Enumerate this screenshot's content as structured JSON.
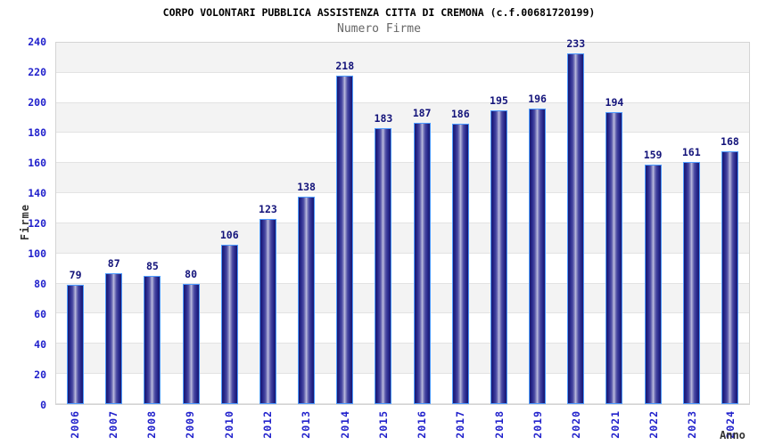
{
  "chart_data": {
    "type": "bar",
    "title": "CORPO VOLONTARI PUBBLICA ASSISTENZA CITTA DI CREMONA (c.f.00681720199)",
    "subtitle": "Numero Firme",
    "xlabel": "Anno",
    "ylabel": "Firme",
    "ylim": [
      0,
      240
    ],
    "ytick_step": 20,
    "grid": "horizontal-bands-alternating",
    "legend": "none",
    "categories": [
      "2006",
      "2007",
      "2008",
      "2009",
      "2010",
      "2012",
      "2013",
      "2014",
      "2015",
      "2016",
      "2017",
      "2018",
      "2019",
      "2020",
      "2021",
      "2022",
      "2023",
      "2024"
    ],
    "values": [
      79,
      87,
      85,
      80,
      106,
      123,
      138,
      218,
      183,
      187,
      186,
      195,
      196,
      233,
      194,
      159,
      161,
      168
    ],
    "colors": {
      "bar_dark": "#18186e",
      "bar_light": "#c2c2e0",
      "bar_border": "#4e9bff",
      "tick_label": "#2222cc",
      "value_label": "#13137a",
      "axis_title": "#333333",
      "subtitle_text": "#666666",
      "band_gray": "#f3f3f3",
      "gridline": "#e3e3e3",
      "plot_border": "#d4d4d4"
    }
  }
}
